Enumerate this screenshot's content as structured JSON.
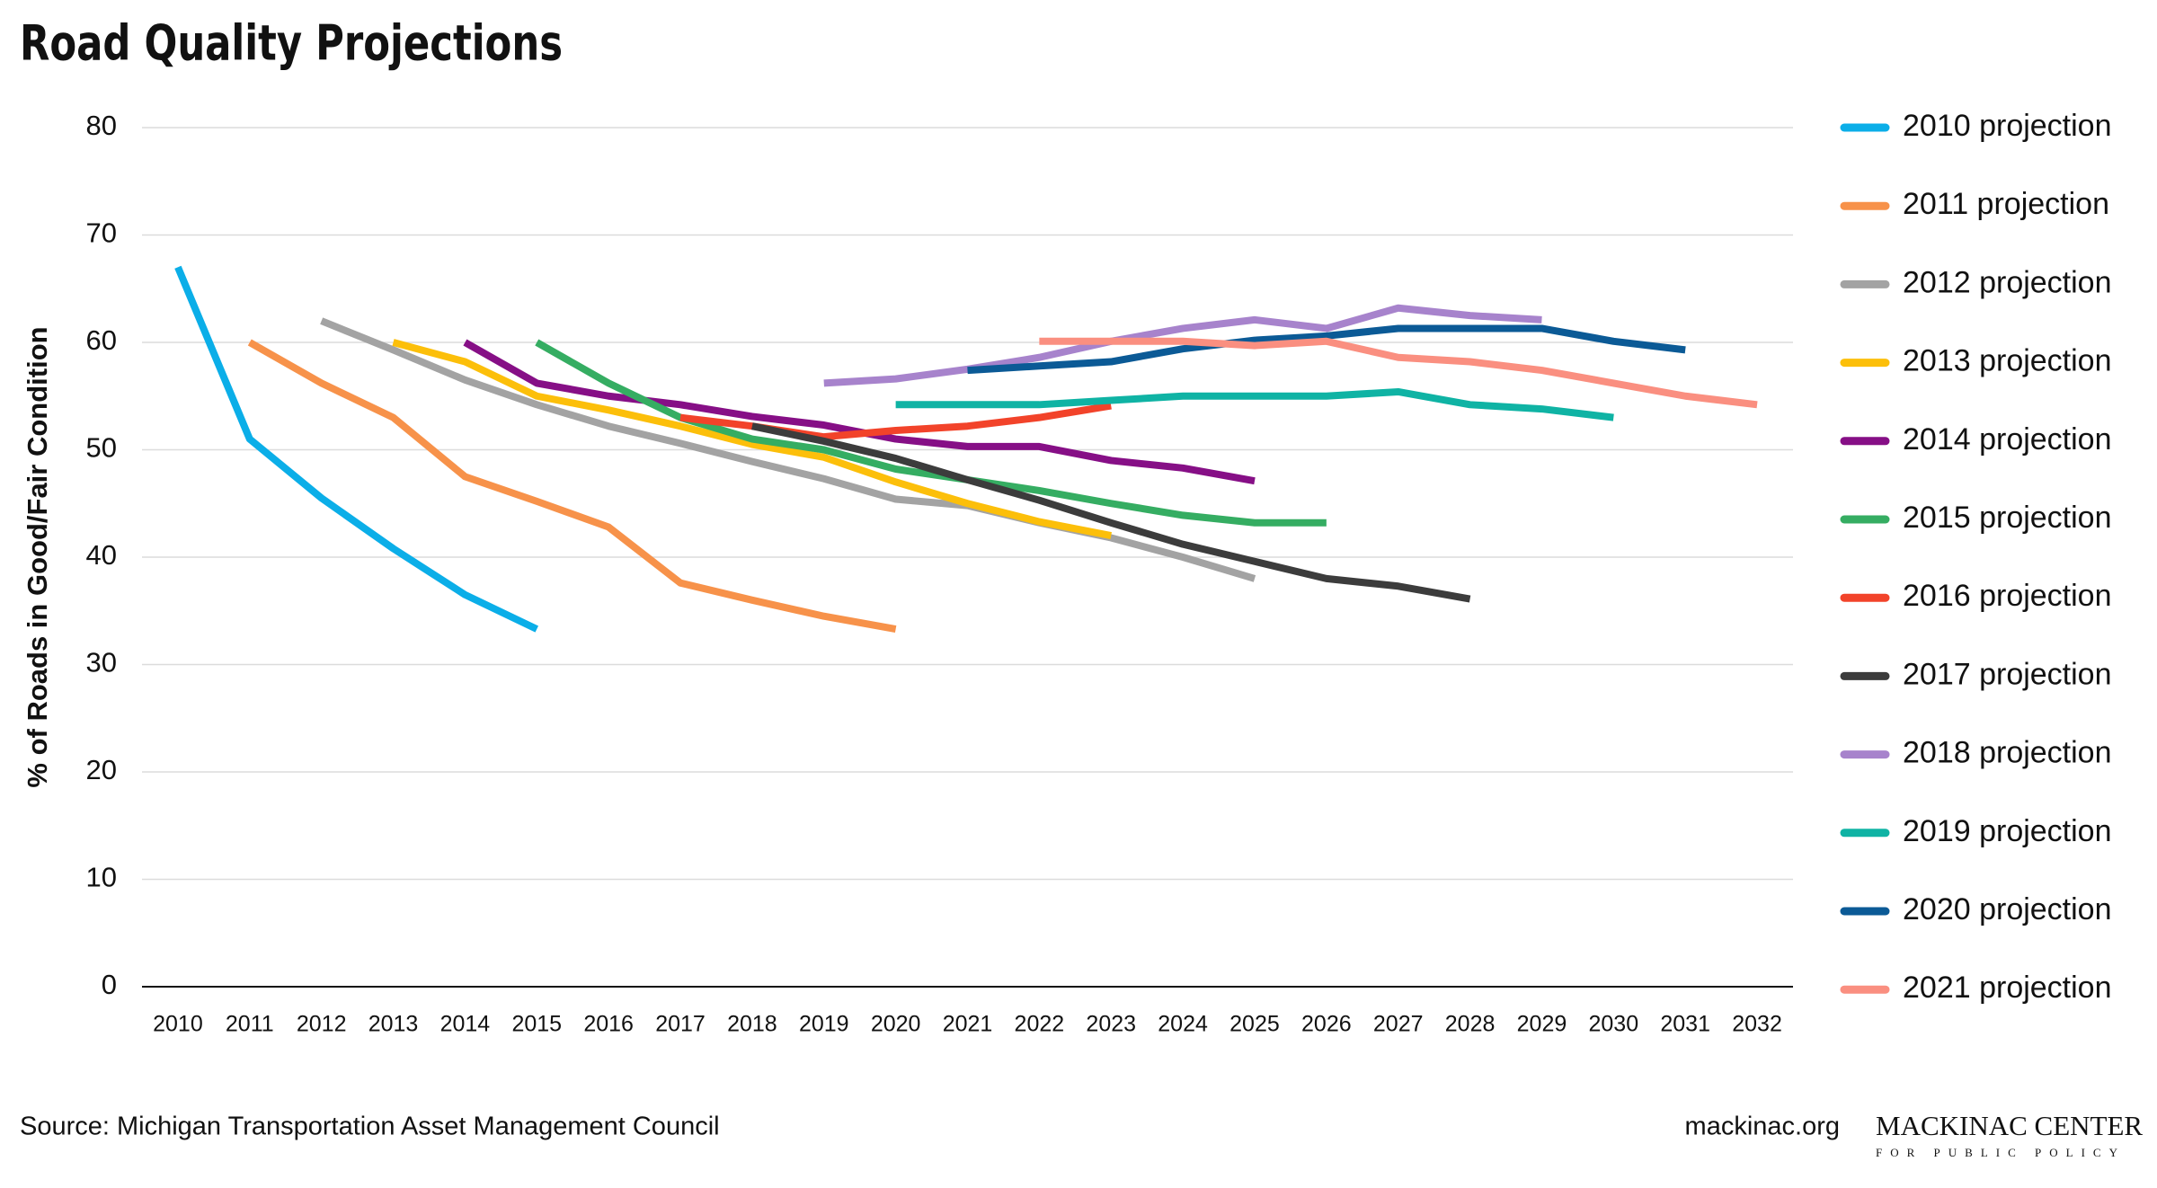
{
  "chart_data": {
    "type": "line",
    "title": "Road Quality Projections",
    "y_label": "% of Roads in Good/Fair Condition",
    "source": "Source: Michigan Transportation Asset Management Council",
    "credit": "mackinac.org",
    "logo": {
      "name": "MACKINAC CENTER",
      "tagline": "FOR PUBLIC POLICY"
    },
    "x": [
      2010,
      2011,
      2012,
      2013,
      2014,
      2015,
      2016,
      2017,
      2018,
      2019,
      2020,
      2021,
      2022,
      2023,
      2024,
      2025,
      2026,
      2027,
      2028,
      2029,
      2030,
      2031,
      2032
    ],
    "xticks": [
      2010,
      2011,
      2012,
      2013,
      2014,
      2015,
      2016,
      2017,
      2018,
      2019,
      2020,
      2021,
      2022,
      2023,
      2024,
      2025,
      2026,
      2027,
      2028,
      2029,
      2030,
      2031,
      2032
    ],
    "xlim": [
      2009.5,
      2032.5
    ],
    "ylim": [
      0,
      80
    ],
    "yticks": [
      0,
      10,
      20,
      30,
      40,
      50,
      60,
      70,
      80
    ],
    "grid": true,
    "legend": "right",
    "series": [
      {
        "name": "2010 projection",
        "color": "#0baee8",
        "values": [
          67,
          51,
          45.5,
          40.8,
          36.5,
          33.3,
          null,
          null,
          null,
          null,
          null,
          null,
          null,
          null,
          null,
          null,
          null,
          null,
          null,
          null,
          null,
          null,
          null
        ]
      },
      {
        "name": "2011 projection",
        "color": "#f7924a",
        "values": [
          null,
          60,
          56.2,
          53,
          47.5,
          45.2,
          42.8,
          37.6,
          36,
          34.5,
          33.3,
          null,
          null,
          null,
          null,
          null,
          null,
          null,
          null,
          null,
          null,
          null,
          null
        ]
      },
      {
        "name": "2012 projection",
        "color": "#a3a3a3",
        "values": [
          null,
          null,
          62,
          59.3,
          56.5,
          54.2,
          52.2,
          50.6,
          48.9,
          47.3,
          45.4,
          44.8,
          43.2,
          41.8,
          40,
          38,
          null,
          null,
          null,
          null,
          null,
          null,
          null
        ]
      },
      {
        "name": "2013 projection",
        "color": "#fcbf0a",
        "values": [
          null,
          null,
          null,
          60,
          58.2,
          55,
          53.7,
          52.2,
          50.5,
          49.3,
          47,
          45,
          43.3,
          42,
          null,
          null,
          null,
          null,
          null,
          null,
          null,
          null,
          null
        ]
      },
      {
        "name": "2014 projection",
        "color": "#860f86",
        "values": [
          null,
          null,
          null,
          null,
          60,
          56.2,
          55,
          54.2,
          53.1,
          52.3,
          51,
          50.3,
          50.3,
          49,
          48.3,
          47.1,
          null,
          null,
          null,
          null,
          null,
          null,
          null
        ]
      },
      {
        "name": "2015 projection",
        "color": "#35ad62",
        "values": [
          null,
          null,
          null,
          null,
          null,
          60,
          56.2,
          53,
          51,
          50,
          48.2,
          47.2,
          46.2,
          45,
          43.9,
          43.2,
          43.2,
          null,
          null,
          null,
          null,
          null,
          null
        ]
      },
      {
        "name": "2016 projection",
        "color": "#f2432a",
        "values": [
          null,
          null,
          null,
          null,
          null,
          null,
          null,
          53,
          52.2,
          51.2,
          51.8,
          52.2,
          53,
          54.1,
          null,
          null,
          null,
          null,
          null,
          null,
          null,
          null,
          null
        ]
      },
      {
        "name": "2017 projection",
        "color": "#3c3c3c",
        "values": [
          null,
          null,
          null,
          null,
          null,
          null,
          null,
          null,
          52.2,
          50.8,
          49.2,
          47.2,
          45.3,
          43.2,
          41.2,
          39.6,
          38,
          37.3,
          36.1,
          null,
          null,
          null,
          null
        ]
      },
      {
        "name": "2018 projection",
        "color": "#a783cc",
        "values": [
          null,
          null,
          null,
          null,
          null,
          null,
          null,
          null,
          null,
          56.2,
          56.6,
          57.5,
          58.6,
          60.1,
          61.3,
          62.1,
          61.3,
          63.2,
          62.5,
          62.1,
          null,
          null,
          null
        ]
      },
      {
        "name": "2019 projection",
        "color": "#0fb3a4",
        "values": [
          null,
          null,
          null,
          null,
          null,
          null,
          null,
          null,
          null,
          null,
          54.2,
          54.2,
          54.2,
          54.6,
          55,
          55,
          55,
          55.4,
          54.2,
          53.8,
          53,
          null,
          null
        ]
      },
      {
        "name": "2020 projection",
        "color": "#0b5a96",
        "values": [
          null,
          null,
          null,
          null,
          null,
          null,
          null,
          null,
          null,
          null,
          null,
          57.4,
          57.8,
          58.2,
          59.4,
          60.2,
          60.6,
          61.3,
          61.3,
          61.3,
          60.1,
          59.3,
          null
        ]
      },
      {
        "name": "2021 projection",
        "color": "#fa8f80",
        "values": [
          null,
          null,
          null,
          null,
          null,
          null,
          null,
          null,
          null,
          null,
          null,
          null,
          60.1,
          60.1,
          60.1,
          59.7,
          60.1,
          58.6,
          58.2,
          57.4,
          56.2,
          55,
          54.2
        ]
      }
    ]
  }
}
